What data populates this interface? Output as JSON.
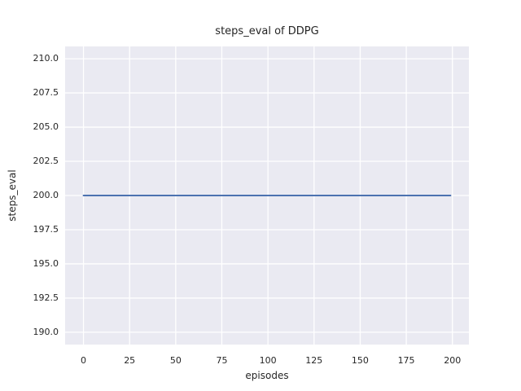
{
  "chart_data": {
    "type": "line",
    "title": "steps_eval of DDPG",
    "xlabel": "episodes",
    "ylabel": "steps_eval",
    "xlim": [
      -9.95,
      208.95
    ],
    "ylim": [
      189.1,
      210.9
    ],
    "x_ticks": [
      0,
      25,
      50,
      75,
      100,
      125,
      150,
      175,
      200
    ],
    "x_tick_labels": [
      "0",
      "25",
      "50",
      "75",
      "100",
      "125",
      "150",
      "175",
      "200"
    ],
    "y_ticks": [
      190,
      192.5,
      195,
      197.5,
      200,
      202.5,
      205,
      207.5,
      210
    ],
    "y_tick_labels": [
      "190.0",
      "192.5",
      "195.0",
      "197.5",
      "200.0",
      "202.5",
      "205.0",
      "207.5",
      "210.0"
    ],
    "grid": true,
    "legend": null,
    "series": [
      {
        "name": "steps_eval",
        "color": "#4C72B0",
        "points": [
          [
            0,
            200
          ],
          [
            199,
            200
          ]
        ]
      }
    ],
    "colors": {
      "axes_background": "#EAEAF2",
      "grid": "#FFFFFF",
      "text": "#262626",
      "figure_background": "#FFFFFF"
    }
  }
}
